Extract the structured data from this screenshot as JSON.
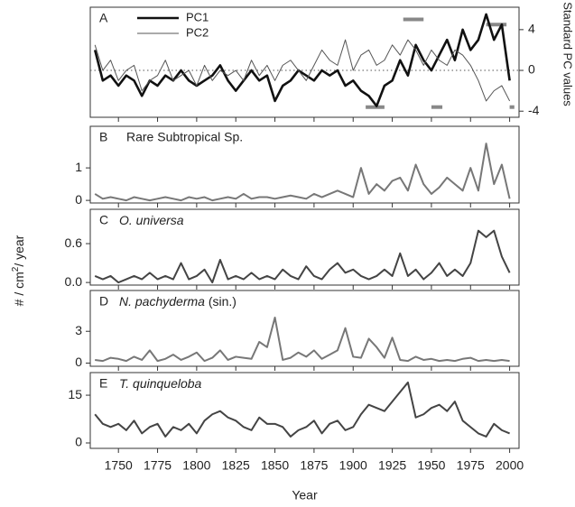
{
  "chart_data": [
    {
      "type": "line",
      "panel": "A",
      "x": [
        1735,
        1740,
        1745,
        1750,
        1755,
        1760,
        1765,
        1770,
        1775,
        1780,
        1785,
        1790,
        1795,
        1800,
        1805,
        1810,
        1815,
        1820,
        1825,
        1830,
        1835,
        1840,
        1845,
        1850,
        1855,
        1860,
        1865,
        1870,
        1875,
        1880,
        1885,
        1890,
        1895,
        1900,
        1905,
        1910,
        1915,
        1920,
        1925,
        1930,
        1935,
        1940,
        1945,
        1950,
        1955,
        1960,
        1965,
        1970,
        1975,
        1980,
        1985,
        1990,
        1995,
        2000
      ],
      "series": [
        {
          "name": "PC1",
          "color": "#111111",
          "width": 2.6,
          "values": [
            2,
            -1,
            -0.5,
            -1.5,
            -0.5,
            -1,
            -2.5,
            -1,
            -1.5,
            -0.5,
            -1,
            0,
            -1,
            -1.5,
            -1,
            -0.5,
            0.5,
            -1,
            -2,
            -1,
            0,
            -1,
            -0.5,
            -3,
            -1.5,
            -1,
            0,
            -0.5,
            -1,
            0,
            -0.5,
            0,
            -1.5,
            -1,
            -2,
            -2.5,
            -3.5,
            -1.5,
            -1,
            1,
            -0.5,
            2.5,
            1,
            0,
            1.5,
            3,
            1,
            4,
            2,
            3,
            5.5,
            3,
            4.5,
            -1
          ]
        },
        {
          "name": "PC2",
          "color": "#555555",
          "width": 1,
          "values": [
            2.5,
            0,
            1,
            -1,
            0,
            0.5,
            -2,
            -1,
            -0.5,
            1,
            -1,
            -0.5,
            0,
            -1.5,
            0.5,
            -1,
            0,
            -0.5,
            0,
            -1,
            1,
            -0.5,
            0.5,
            -1,
            0.5,
            1,
            0,
            -1,
            0.5,
            2,
            1,
            0.5,
            3,
            0,
            1.5,
            2,
            0.5,
            1,
            2.5,
            1.5,
            3,
            2,
            0.5,
            2,
            1,
            0.5,
            2,
            1.5,
            0.5,
            -1,
            -3,
            -2,
            -1.5,
            -3
          ]
        }
      ],
      "segments": [
        {
          "x": [
            1932,
            1945
          ],
          "y": 5
        },
        {
          "x": [
            1908,
            1920
          ],
          "y": -3.6
        },
        {
          "x": [
            1950,
            1957
          ],
          "y": -3.6
        },
        {
          "x": [
            1985,
            1998
          ],
          "y": 4.5
        },
        {
          "x": [
            2000,
            2003
          ],
          "y": -3.6
        }
      ],
      "segment_color": "#888888",
      "reference_line": 0,
      "xlim": [
        1732,
        2006
      ],
      "xticks": [
        1750,
        1775,
        1800,
        1825,
        1850,
        1875,
        1900,
        1925,
        1950,
        1975,
        2000
      ],
      "ylim": [
        -4.6,
        6.2
      ],
      "yticks": [
        -4,
        0,
        4
      ],
      "y_axis_side": "right",
      "y_label": "Standard PC values",
      "legend": "top-left"
    },
    {
      "type": "line",
      "panel": "B",
      "title": "Rare Subtropical Sp.",
      "x": [
        1735,
        1740,
        1745,
        1750,
        1755,
        1760,
        1765,
        1770,
        1775,
        1780,
        1785,
        1790,
        1795,
        1800,
        1805,
        1810,
        1815,
        1820,
        1825,
        1830,
        1835,
        1840,
        1845,
        1850,
        1855,
        1860,
        1865,
        1870,
        1875,
        1880,
        1885,
        1890,
        1895,
        1900,
        1905,
        1910,
        1915,
        1920,
        1925,
        1930,
        1935,
        1940,
        1945,
        1950,
        1955,
        1960,
        1965,
        1970,
        1975,
        1980,
        1985,
        1990,
        1995,
        2000
      ],
      "series": [
        {
          "color": "#777777",
          "width": 2,
          "values": [
            0.2,
            0.05,
            0.1,
            0.05,
            0,
            0.1,
            0.05,
            0,
            0.05,
            0.1,
            0.05,
            0,
            0.1,
            0.05,
            0.1,
            0,
            0.05,
            0.1,
            0.05,
            0.2,
            0.05,
            0.1,
            0.1,
            0.05,
            0.1,
            0.15,
            0.1,
            0.05,
            0.2,
            0.1,
            0.2,
            0.3,
            0.2,
            0.1,
            1,
            0.2,
            0.5,
            0.3,
            0.6,
            0.7,
            0.3,
            1.1,
            0.5,
            0.2,
            0.4,
            0.7,
            0.5,
            0.3,
            1,
            0.3,
            1.75,
            0.5,
            1.1,
            0.05
          ]
        }
      ],
      "xlim": [
        1732,
        2006
      ],
      "xticks": [
        1750,
        1775,
        1800,
        1825,
        1850,
        1875,
        1900,
        1925,
        1950,
        1975,
        2000
      ],
      "ylim": [
        -0.08,
        2.28
      ],
      "yticks": [
        0,
        1
      ]
    },
    {
      "type": "line",
      "panel": "C",
      "title_italic": "O. universa",
      "x": [
        1735,
        1740,
        1745,
        1750,
        1755,
        1760,
        1765,
        1770,
        1775,
        1780,
        1785,
        1790,
        1795,
        1800,
        1805,
        1810,
        1815,
        1820,
        1825,
        1830,
        1835,
        1840,
        1845,
        1850,
        1855,
        1860,
        1865,
        1870,
        1875,
        1880,
        1885,
        1890,
        1895,
        1900,
        1905,
        1910,
        1915,
        1920,
        1925,
        1930,
        1935,
        1940,
        1945,
        1950,
        1955,
        1960,
        1965,
        1970,
        1975,
        1980,
        1985,
        1990,
        1995,
        2000
      ],
      "series": [
        {
          "color": "#444444",
          "width": 2,
          "values": [
            0.1,
            0.05,
            0.1,
            0,
            0.05,
            0.1,
            0.05,
            0.15,
            0.05,
            0.1,
            0.05,
            0.3,
            0.05,
            0.1,
            0.2,
            0,
            0.35,
            0.05,
            0.1,
            0.05,
            0.15,
            0.05,
            0.1,
            0.05,
            0.2,
            0.1,
            0.05,
            0.25,
            0.1,
            0.05,
            0.2,
            0.3,
            0.15,
            0.2,
            0.1,
            0.05,
            0.1,
            0.2,
            0.1,
            0.45,
            0.1,
            0.2,
            0.05,
            0.15,
            0.3,
            0.1,
            0.2,
            0.1,
            0.3,
            0.8,
            0.7,
            0.8,
            0.4,
            0.15
          ]
        }
      ],
      "xlim": [
        1732,
        2006
      ],
      "xticks": [
        1750,
        1775,
        1800,
        1825,
        1850,
        1875,
        1900,
        1925,
        1950,
        1975,
        2000
      ],
      "ylim": [
        -0.04,
        1.13
      ],
      "yticks": [
        {
          "value": 0,
          "label": "0.0"
        },
        0.6
      ]
    },
    {
      "type": "line",
      "panel": "D",
      "title_italic": "N. pachyderma",
      "title_rest": " (sin.)",
      "x": [
        1735,
        1740,
        1745,
        1750,
        1755,
        1760,
        1765,
        1770,
        1775,
        1780,
        1785,
        1790,
        1795,
        1800,
        1805,
        1810,
        1815,
        1820,
        1825,
        1830,
        1835,
        1840,
        1845,
        1850,
        1855,
        1860,
        1865,
        1870,
        1875,
        1880,
        1885,
        1890,
        1895,
        1900,
        1905,
        1910,
        1915,
        1920,
        1925,
        1930,
        1935,
        1940,
        1945,
        1950,
        1955,
        1960,
        1965,
        1970,
        1975,
        1980,
        1985,
        1990,
        1995,
        2000
      ],
      "series": [
        {
          "color": "#777777",
          "width": 2,
          "values": [
            0.3,
            0.2,
            0.5,
            0.4,
            0.2,
            0.6,
            0.3,
            1.2,
            0.2,
            0.4,
            0.8,
            0.3,
            0.6,
            1,
            0.2,
            0.5,
            1.2,
            0.3,
            0.6,
            0.5,
            0.4,
            2,
            1.5,
            4.3,
            0.3,
            0.5,
            1,
            0.6,
            1.2,
            0.4,
            0.8,
            1.2,
            3.3,
            0.6,
            0.5,
            2.3,
            1.5,
            0.5,
            2.4,
            0.3,
            0.2,
            0.6,
            0.3,
            0.4,
            0.2,
            0.3,
            0.2,
            0.4,
            0.5,
            0.2,
            0.3,
            0.2,
            0.3,
            0.2
          ]
        }
      ],
      "xlim": [
        1732,
        2006
      ],
      "xticks": [
        1750,
        1775,
        1800,
        1825,
        1850,
        1875,
        1900,
        1925,
        1950,
        1975,
        2000
      ],
      "ylim": [
        -0.3,
        6.85
      ],
      "yticks": [
        0,
        3
      ]
    },
    {
      "type": "line",
      "panel": "E",
      "title_italic": "T. quinqueloba",
      "x": [
        1735,
        1740,
        1745,
        1750,
        1755,
        1760,
        1765,
        1770,
        1775,
        1780,
        1785,
        1790,
        1795,
        1800,
        1805,
        1810,
        1815,
        1820,
        1825,
        1830,
        1835,
        1840,
        1845,
        1850,
        1855,
        1860,
        1865,
        1870,
        1875,
        1880,
        1885,
        1890,
        1895,
        1900,
        1905,
        1910,
        1915,
        1920,
        1925,
        1930,
        1935,
        1940,
        1945,
        1950,
        1955,
        1960,
        1965,
        1970,
        1975,
        1980,
        1985,
        1990,
        1995,
        2000
      ],
      "series": [
        {
          "color": "#444444",
          "width": 2,
          "values": [
            9,
            6,
            5,
            6,
            4,
            7,
            3,
            5,
            6,
            2,
            5,
            4,
            6,
            3,
            7,
            9,
            10,
            8,
            7,
            5,
            4,
            8,
            6,
            6,
            5,
            2,
            4,
            5,
            7,
            3,
            6,
            7,
            4,
            5,
            9,
            12,
            11,
            10,
            13,
            16,
            19,
            8,
            9,
            11,
            12,
            10,
            13,
            7,
            5,
            3,
            2,
            6,
            4,
            3
          ]
        }
      ],
      "xlim": [
        1732,
        2006
      ],
      "xticks": [
        1750,
        1775,
        1800,
        1825,
        1850,
        1875,
        1900,
        1925,
        1950,
        1975,
        2000
      ],
      "ylim": [
        -1.7,
        22.1
      ],
      "yticks": [
        0,
        15
      ],
      "x_label": "Year"
    }
  ],
  "shared_y_label": {
    "before": "# / cm",
    "sup": "2",
    "after": "/ year"
  }
}
